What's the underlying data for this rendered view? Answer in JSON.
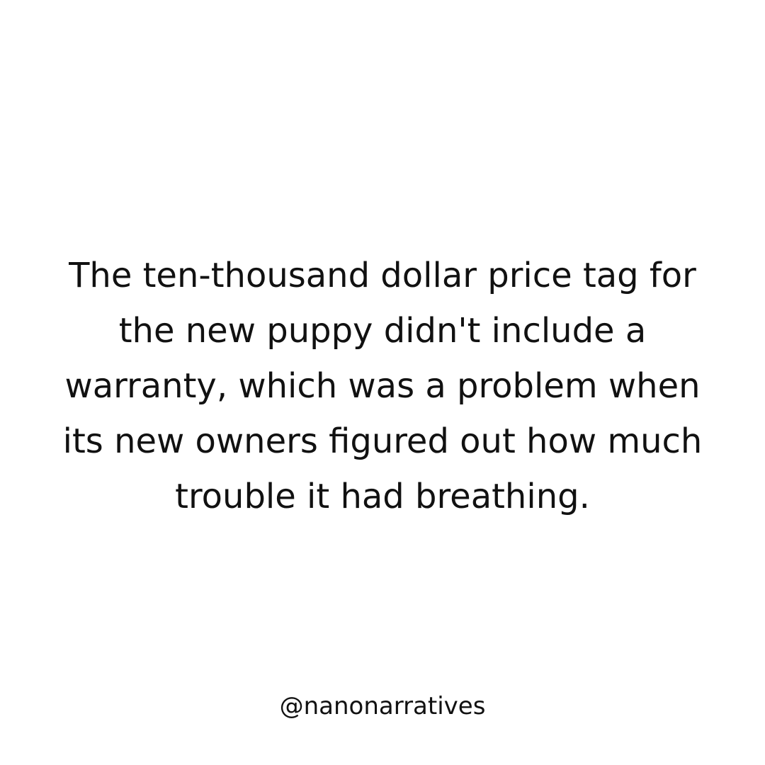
{
  "story": {
    "lines": [
      "The ten-thousand dollar price tag for",
      "the new puppy didn't include a",
      "warranty, which was a problem when",
      "its new owners figured out how much",
      "trouble it had breathing."
    ]
  },
  "footer": {
    "handle": "@nanonarratives"
  },
  "colors": {
    "background": "#ffffff",
    "text": "#111111"
  }
}
